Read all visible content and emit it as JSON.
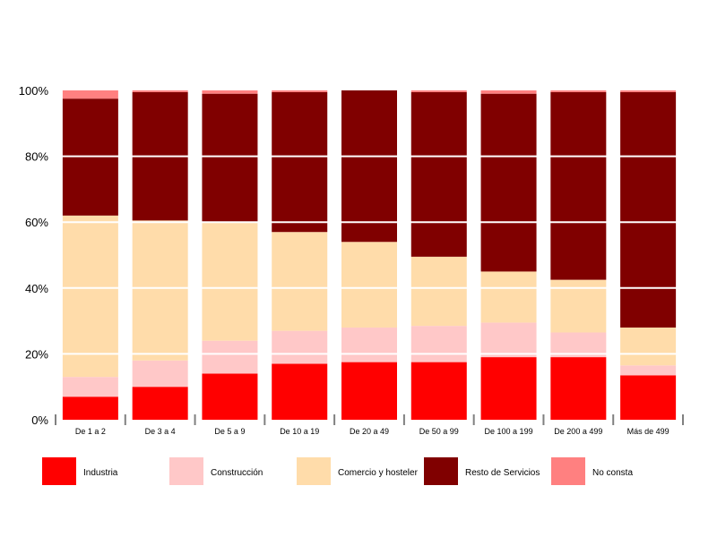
{
  "chart_data": {
    "type": "bar",
    "stacked": true,
    "normalized": true,
    "categories": [
      "De 1 a 2",
      "De 3 a 4",
      "De 5 a 9",
      "De 10 a 19",
      "De 20 a 49",
      "De 50 a 99",
      "De 100 a 199",
      "De 200 a 499",
      "Más de 499"
    ],
    "series": [
      {
        "name": "Industria",
        "color": "#ff0000",
        "values": [
          7,
          10,
          14,
          17,
          17.5,
          17.5,
          19,
          19,
          13.5
        ]
      },
      {
        "name": "Construcción",
        "color": "#ffc8c8",
        "values": [
          6,
          8,
          10,
          10,
          10.5,
          11,
          10.5,
          7.5,
          3
        ]
      },
      {
        "name": "Comercio y hostelería",
        "color": "#ffdcaa",
        "values": [
          49,
          42.5,
          36,
          30,
          26,
          21,
          15.5,
          16,
          11.5
        ]
      },
      {
        "name": "Resto de Servicios",
        "color": "#800000",
        "values": [
          35.5,
          39,
          39,
          42.5,
          46,
          50,
          54,
          57,
          71.5
        ]
      },
      {
        "name": "No consta",
        "color": "#ff8080",
        "values": [
          2.5,
          0.5,
          1,
          0.5,
          0,
          0.5,
          1,
          0.5,
          0.5
        ]
      }
    ],
    "y_tick_labels": [
      "0%",
      "20%",
      "40%",
      "60%",
      "80%",
      "100%"
    ],
    "ylim": [
      0,
      100
    ],
    "grid": "horizontal",
    "legend_position": "bottom",
    "legend_labels": [
      "Industria",
      "Construcción",
      "Comercio y hosteler",
      "Resto de Servicios",
      "No consta"
    ]
  }
}
